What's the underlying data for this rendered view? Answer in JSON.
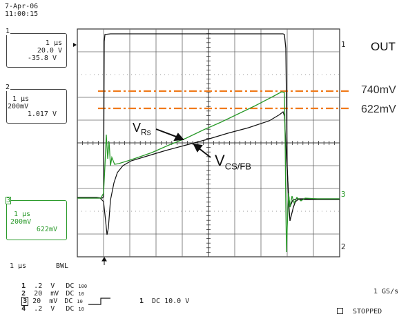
{
  "header": {
    "date": "7-Apr-06",
    "time": "11:00:15"
  },
  "channels": [
    {
      "num": "1",
      "timebase": "1 µs",
      "scale": "20.0 V",
      "value": "-35.8 V",
      "color": "#222222"
    },
    {
      "num": "2",
      "timebase": "1 µs",
      "scale": "200mV",
      "value": "1.017 V",
      "color": "#222222"
    },
    {
      "num": "3",
      "timebase": "1 µs",
      "scale": "200mV",
      "value": "622mV",
      "color": "#2a9a2a"
    }
  ],
  "markers": {
    "ch1": "1",
    "ch2": "2",
    "ch3": "3"
  },
  "labels": {
    "out": "OUT",
    "level_high": "740mV",
    "level_low": "622mV",
    "vrs_main": "V",
    "vrs_sub": "Rs",
    "vcs_main": "V",
    "vcs_sub": "CS/FB"
  },
  "bottom": {
    "timebase": "1 µs",
    "bwl": "BWL",
    "rows": [
      {
        "num": "1",
        "volts": ".2",
        "unit": "V",
        "coupling": "DC",
        "probe": "100"
      },
      {
        "num": "2",
        "volts": "20",
        "unit": "mV",
        "coupling": "DC",
        "probe": "10"
      },
      {
        "num": "3",
        "volts": "20",
        "unit": "mV",
        "coupling": "DC",
        "probe": "10"
      },
      {
        "num": "4",
        "volts": ".2",
        "unit": "V",
        "coupling": "DC",
        "probe": "10"
      }
    ],
    "trigger_ch": "1",
    "trigger_setting": "DC 10.0 V",
    "sample_rate": "1 GS/s",
    "status": "STOPPED"
  },
  "colors": {
    "green": "#2a9a2a",
    "orange": "#f07a1a",
    "trace": "#111111",
    "grid": "#555555"
  }
}
